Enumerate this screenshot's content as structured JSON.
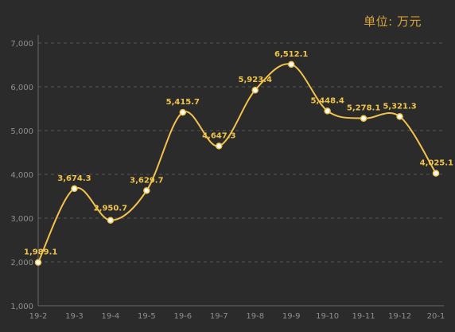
{
  "unit_label": "单位: 万元",
  "chart_data": {
    "type": "line",
    "title": "",
    "xlabel": "",
    "ylabel": "",
    "unit": "单位: 万元",
    "categories": [
      "19-2",
      "19-3",
      "19-4",
      "19-5",
      "19-6",
      "19-7",
      "19-8",
      "19-9",
      "19-10",
      "19-11",
      "19-12",
      "20-1"
    ],
    "values": [
      1989.1,
      3674.3,
      2950.7,
      3629.7,
      5415.7,
      4647.3,
      5923.4,
      6512.1,
      5448.4,
      5278.1,
      5321.3,
      4025.1
    ],
    "data_labels": [
      "1,989.1",
      "3,674.3",
      "2,950.7",
      "3,629.7",
      "5,415.7",
      "4,647.3",
      "5,923.4",
      "6,512.1",
      "5,448.4",
      "5,278.1",
      "5,321.3",
      "4,025.1"
    ],
    "ylim": [
      1000,
      7000
    ],
    "yticks": [
      1000,
      2000,
      3000,
      4000,
      5000,
      6000,
      7000
    ],
    "ytick_labels": [
      "1,000",
      "2,000",
      "3,000",
      "4,000",
      "5,000",
      "6,000",
      "7,000"
    ],
    "grid": true,
    "colors": {
      "line": "#f2c24c",
      "labels": "#f0c44a",
      "point_fill": "#ffffff",
      "grid": "#555555",
      "background": "#2b2b2b"
    }
  }
}
